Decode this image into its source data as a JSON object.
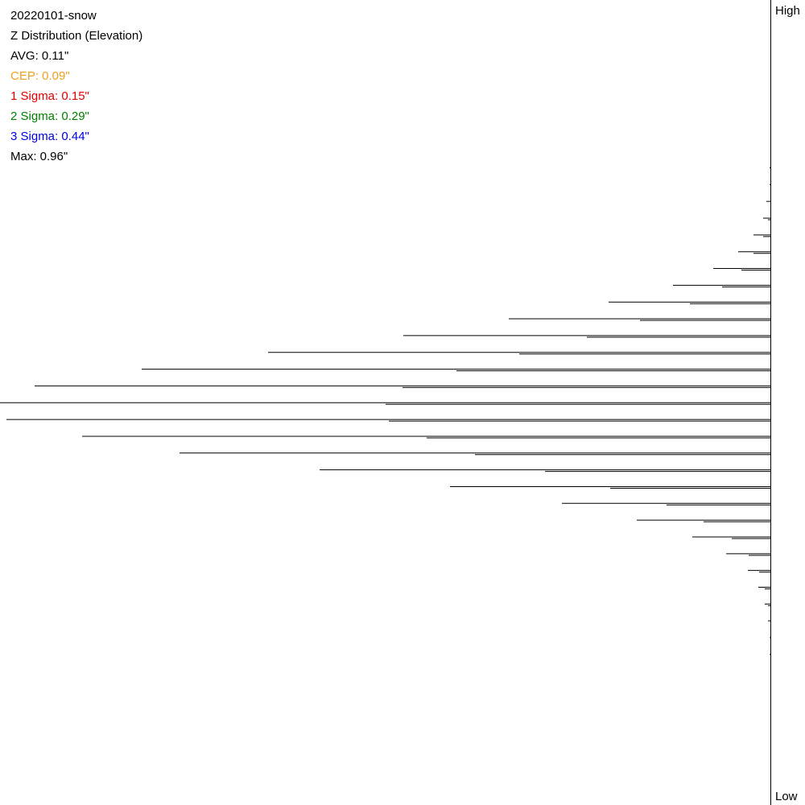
{
  "chart_data": {
    "type": "hbar-lines",
    "title": "20220101-snow",
    "subtitle": "Z Distribution (Elevation)",
    "stats": [
      {
        "text": "AVG: 0.11\"",
        "color": "#000000"
      },
      {
        "text": "CEP: 0.09\"",
        "color": "#f0a020"
      },
      {
        "text": "1 Sigma: 0.15\"",
        "color": "#e00000"
      },
      {
        "text": "2 Sigma: 0.29\"",
        "color": "#008000"
      },
      {
        "text": "3 Sigma: 0.44\"",
        "color": "#0000e0"
      },
      {
        "text": "Max: 0.96\"",
        "color": "#000000"
      }
    ],
    "y_top_label": "High",
    "y_bottom_label": "Low",
    "xlim": [
      0,
      957
    ],
    "series": [
      {
        "color": "#000000",
        "values": [
          1,
          1,
          5,
          9,
          21,
          40,
          71,
          121,
          201,
          325,
          456,
          624,
          781,
          914,
          957,
          949,
          855,
          734,
          560,
          398,
          259,
          166,
          97,
          55,
          28,
          15,
          7,
          3,
          1,
          1
        ]
      },
      {
        "color": "#000000",
        "values": [
          null,
          null,
          null,
          3,
          9,
          21,
          36,
          60,
          100,
          162,
          228,
          312,
          390,
          457,
          478,
          474,
          427,
          367,
          280,
          199,
          129,
          83,
          48,
          27,
          14,
          7,
          3,
          null,
          null,
          null
        ]
      }
    ]
  }
}
